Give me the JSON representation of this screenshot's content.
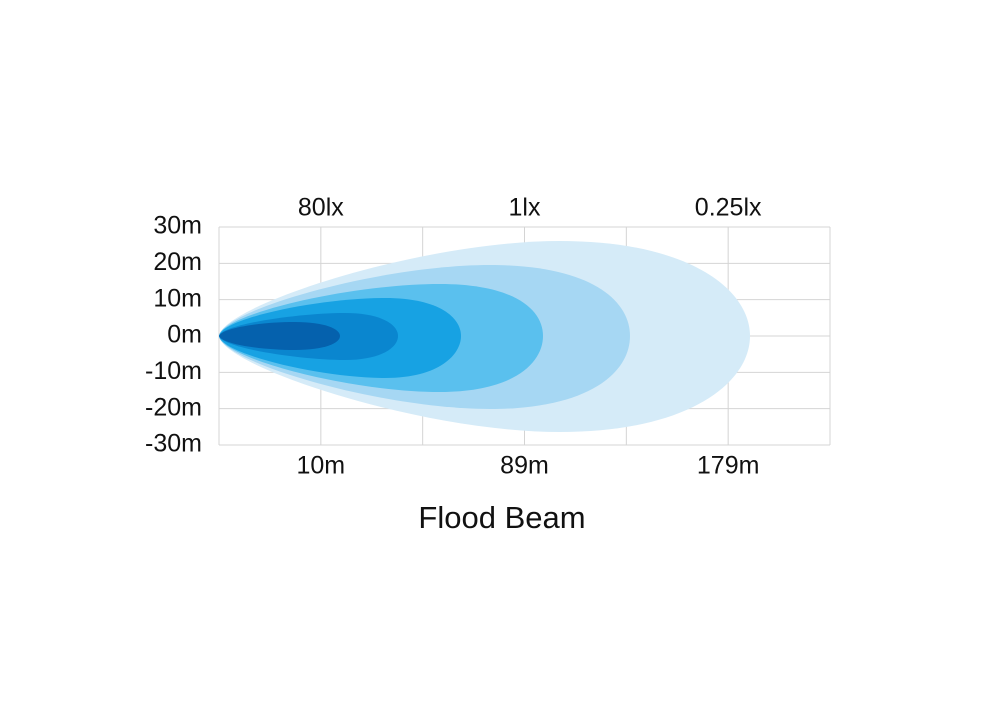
{
  "chart_data": {
    "type": "beam",
    "title": "Flood Beam",
    "ylim": [
      -30,
      30
    ],
    "yticks": [
      {
        "value": 30,
        "label": "30m"
      },
      {
        "value": 20,
        "label": "20m"
      },
      {
        "value": 10,
        "label": "10m"
      },
      {
        "value": 0,
        "label": "0m"
      },
      {
        "value": -10,
        "label": "-10m"
      },
      {
        "value": -20,
        "label": "-20m"
      },
      {
        "value": -30,
        "label": "-30m"
      }
    ],
    "x_labels": [
      "10m",
      "89m",
      "179m"
    ],
    "top_labels": [
      "80lx",
      "1lx",
      "0.25lx"
    ],
    "grid": true
  }
}
